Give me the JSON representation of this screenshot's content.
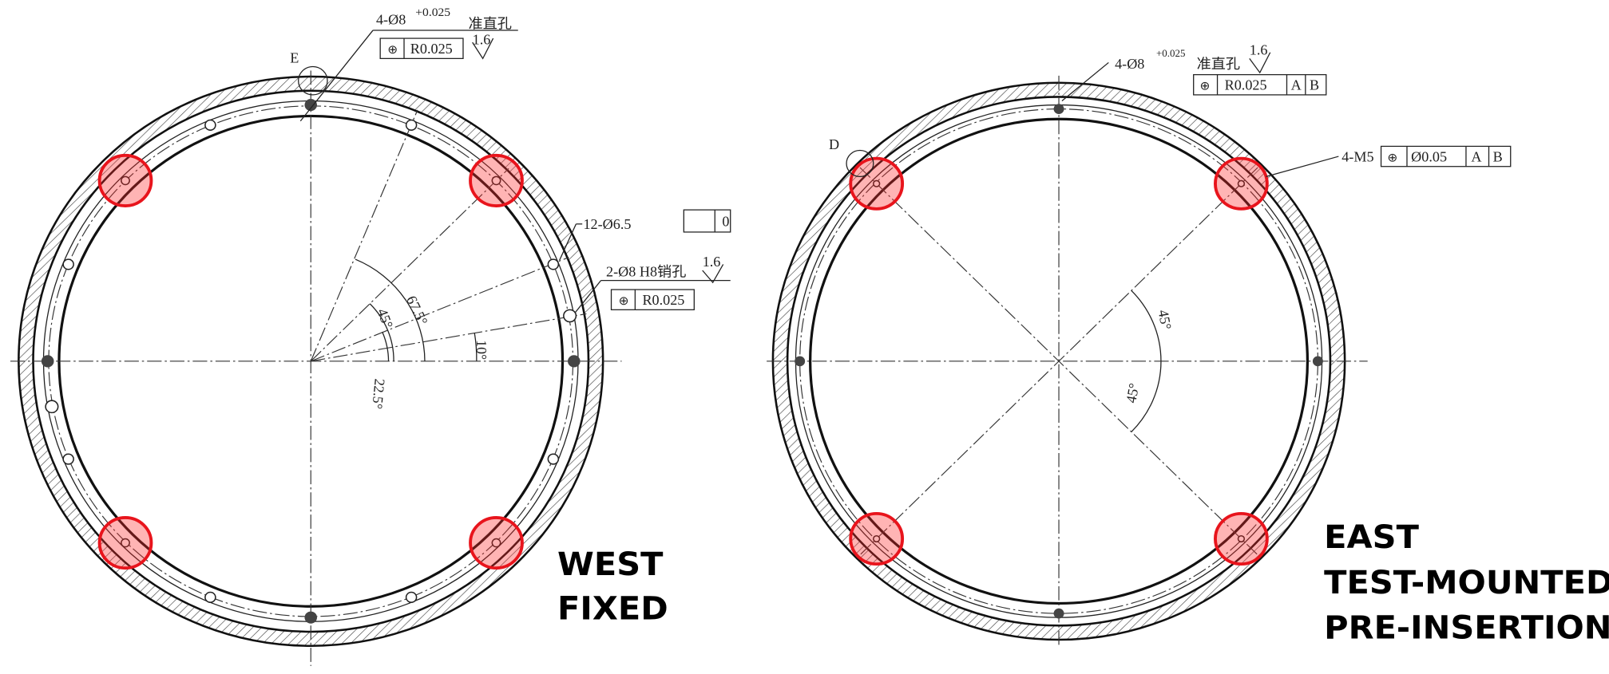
{
  "west": {
    "e_label": "E",
    "collimation_hole": {
      "qty_dia": "4-Ø8",
      "tolerance": "+0.025",
      "name": "准直孔",
      "position_tol": "R0.025",
      "roughness": "1.6"
    },
    "bolt_holes": "12-Ø6.5",
    "pin_holes": {
      "label": "2-Ø8 H8销孔",
      "roughness": "1.6",
      "position_tol": "R0.025"
    },
    "flatness_partial": "0",
    "angles": [
      "67.5°",
      "45°",
      "10°",
      "22.5°"
    ],
    "caption": [
      "WEST",
      "FIXED"
    ]
  },
  "east": {
    "d_label": "D",
    "collimation_hole": {
      "qty_dia": "4-Ø8",
      "tolerance": "+0.025",
      "name": "准直孔",
      "roughness": "1.6",
      "position_tol": "R0.025",
      "datums": [
        "A",
        "B"
      ]
    },
    "threaded": {
      "label": "4-M5",
      "position_tol": "Ø0.05",
      "datums": [
        "A",
        "B"
      ]
    },
    "angles": [
      "45°",
      "45°"
    ],
    "caption": [
      "EAST",
      "TEST-MOUNTED",
      "PRE-INSERTION"
    ]
  }
}
